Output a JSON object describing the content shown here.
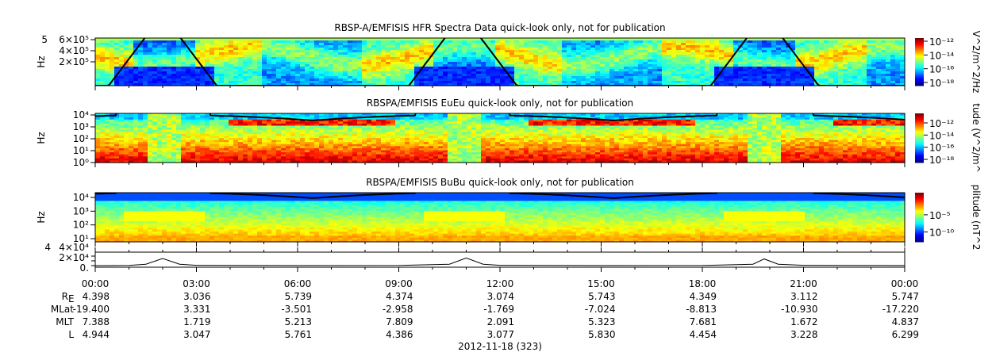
{
  "chart_data": [
    {
      "type": "heatmap",
      "title": "RBSP-A/EMFISIS  HFR Spectra Data quick-look only, not for publication",
      "ylabel": "Hz",
      "yticks": [
        "6×10⁵",
        "4×10⁵",
        "2×10⁵"
      ],
      "ytop_label": "5",
      "colorbar": {
        "label": "V^2/m^2/Hz",
        "ticks": [
          "10⁻¹²",
          "10⁻¹⁴",
          "10⁻¹⁶",
          "10⁻¹⁸"
        ]
      }
    },
    {
      "type": "heatmap",
      "title": "RBSPA/EMFISIS  EuEu quick-look only, not for publication",
      "ylabel": "Hz",
      "yticks": [
        "10⁴",
        "10³",
        "10²",
        "10¹",
        "10⁰"
      ],
      "colorbar": {
        "label": "tude (V^2/m^",
        "ticks": [
          "10⁻¹²",
          "10⁻¹⁴",
          "10⁻¹⁶",
          "10⁻¹⁸"
        ]
      }
    },
    {
      "type": "heatmap",
      "title": "RBSPA/EMFISIS  BuBu quick-look only, not for publication",
      "ylabel": "Hz",
      "yticks": [
        "10⁴",
        "10³",
        "10²",
        "10¹"
      ],
      "colorbar": {
        "label": "plitude (nT^2",
        "ticks": [
          "10⁻⁵",
          "10⁻¹⁰"
        ]
      }
    },
    {
      "type": "line",
      "yticks": [
        "4×10⁴",
        "2×10⁴",
        "0."
      ],
      "ytop_label": "4",
      "x": [
        "00:00",
        "01:00",
        "01:30",
        "02:00",
        "02:30",
        "03:00",
        "06:00",
        "09:00",
        "10:30",
        "11:00",
        "11:30",
        "12:00",
        "15:00",
        "18:00",
        "19:30",
        "19:50",
        "20:15",
        "21:00",
        "24:00"
      ],
      "y": [
        0,
        1000,
        6000,
        30000,
        6000,
        1500,
        500,
        800,
        6000,
        32000,
        6000,
        1500,
        500,
        800,
        6000,
        28000,
        6000,
        1500,
        500
      ],
      "ylim": [
        0,
        50000
      ]
    }
  ],
  "time_axis": {
    "ticks": [
      "00:00",
      "03:00",
      "06:00",
      "09:00",
      "12:00",
      "15:00",
      "18:00",
      "21:00",
      "00:00"
    ],
    "date": "2012-11-18 (323)"
  },
  "ephemeris": [
    {
      "label": "R",
      "sub": "E",
      "values": [
        "4.398",
        "3.036",
        "5.739",
        "4.374",
        "3.074",
        "5.743",
        "4.349",
        "3.112",
        "5.747"
      ]
    },
    {
      "label": "MLat",
      "sub": "",
      "values": [
        "-19.400",
        "3.331",
        "-3.501",
        "-2.958",
        "-1.769",
        "-7.024",
        "-8.813",
        "-10.930",
        "-17.220"
      ]
    },
    {
      "label": "MLT",
      "sub": "",
      "values": [
        "7.388",
        "1.719",
        "5.213",
        "7.809",
        "2.091",
        "5.323",
        "7.681",
        "1.672",
        "4.837"
      ]
    },
    {
      "label": "L",
      "sub": "",
      "values": [
        "4.944",
        "3.047",
        "5.761",
        "4.386",
        "3.077",
        "5.830",
        "4.454",
        "3.228",
        "6.299"
      ]
    }
  ]
}
